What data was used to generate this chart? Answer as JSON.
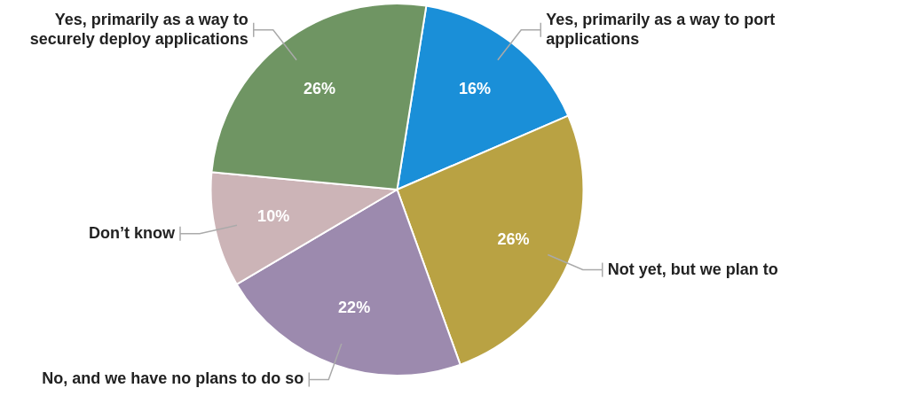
{
  "chart_data": {
    "type": "pie",
    "categories": [
      "Yes, primarily as a way to port applications",
      "Not yet, but we plan to",
      "No, and we have no plans to do so",
      "Don’t know",
      "Yes, primarily as a way to securely deploy applications"
    ],
    "values": [
      16,
      26,
      22,
      10,
      26
    ],
    "colors": [
      "#1a8fd8",
      "#b9a243",
      "#9c8aae",
      "#ccb4b7",
      "#6f9563"
    ],
    "value_labels": [
      "16%",
      "26%",
      "22%",
      "10%",
      "26%"
    ],
    "legend": false
  }
}
